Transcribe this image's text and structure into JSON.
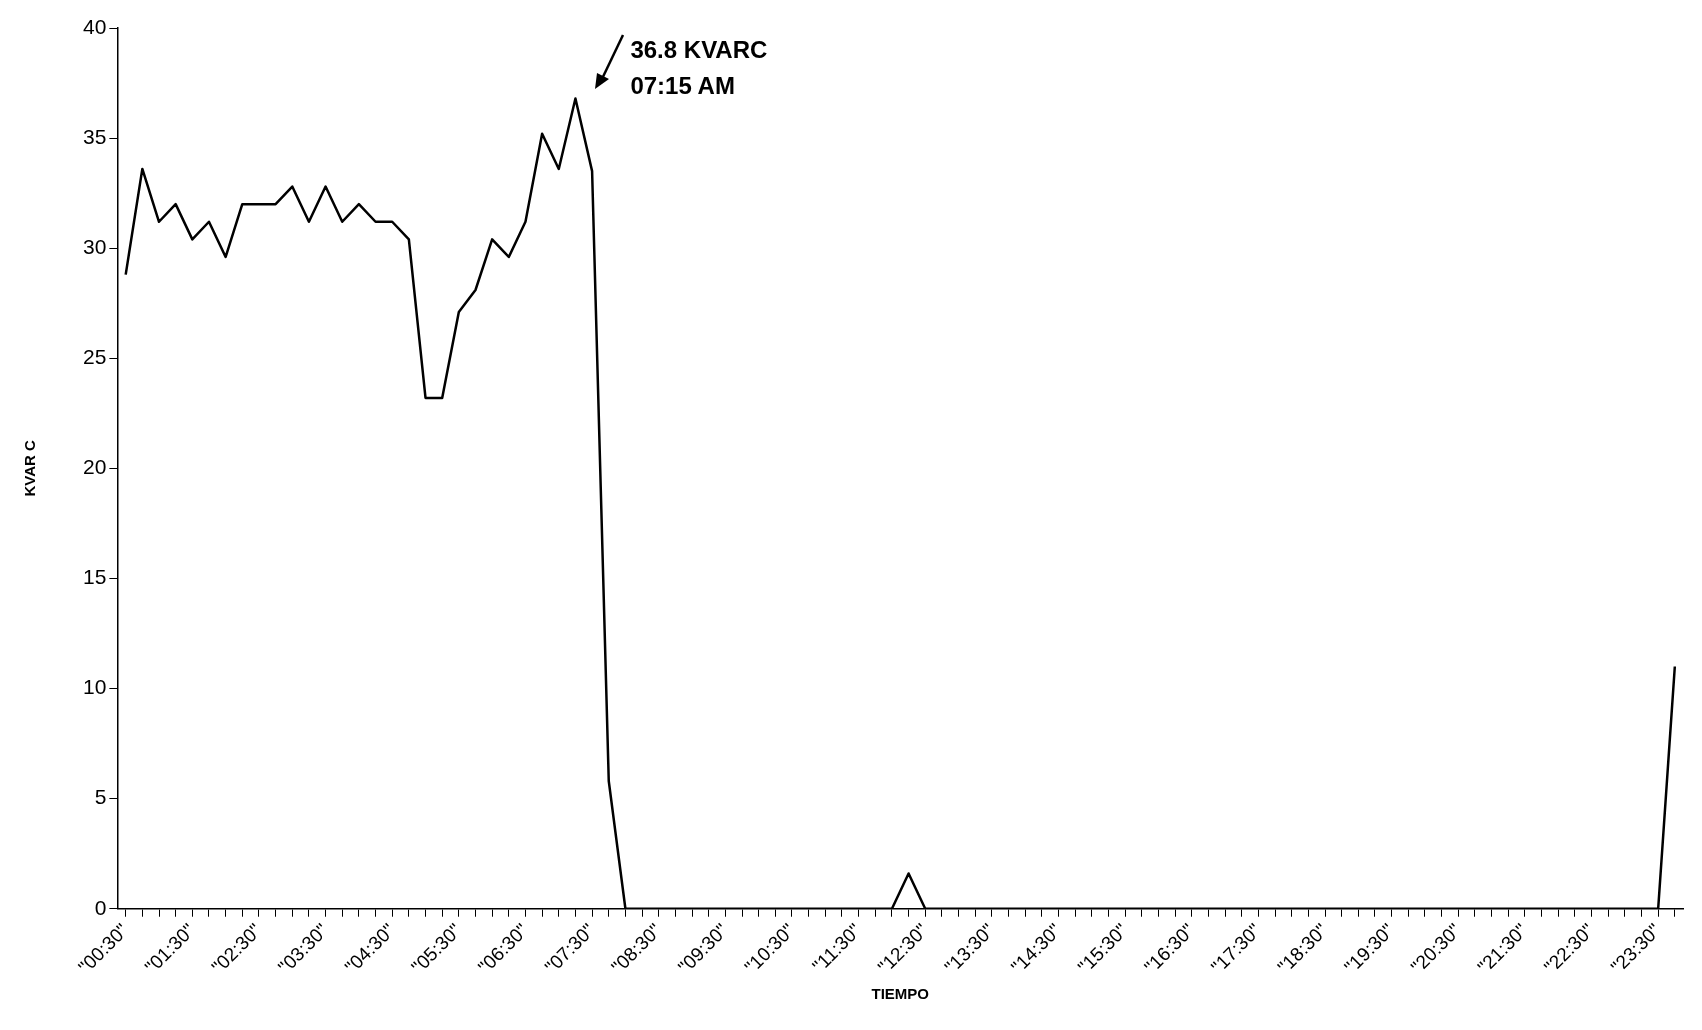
{
  "chart_data": {
    "type": "line",
    "xlabel": "TIEMPO",
    "ylabel": "KVAR C",
    "categories": [
      "\"00:30\"",
      null,
      null,
      null,
      "\"01:30\"",
      null,
      null,
      null,
      "\"02:30\"",
      null,
      null,
      null,
      "\"03:30\"",
      null,
      null,
      null,
      "\"04:30\"",
      null,
      null,
      null,
      "\"05:30\"",
      null,
      null,
      null,
      "\"06:30\"",
      null,
      null,
      null,
      "\"07:30\"",
      null,
      null,
      null,
      "\"08:30\"",
      null,
      null,
      null,
      "\"09:30\"",
      null,
      null,
      null,
      "\"10:30\"",
      null,
      null,
      null,
      "\"11:30\"",
      null,
      null,
      null,
      "\"12:30\"",
      null,
      null,
      null,
      "\"13:30\"",
      null,
      null,
      null,
      "\"14:30\"",
      null,
      null,
      null,
      "\"15:30\"",
      null,
      null,
      null,
      "\"16:30\"",
      null,
      null,
      null,
      "\"17:30\"",
      null,
      null,
      null,
      "\"18:30\"",
      null,
      null,
      null,
      "\"19:30\"",
      null,
      null,
      null,
      "\"20:30\"",
      null,
      null,
      null,
      "\"21:30\"",
      null,
      null,
      null,
      "\"22:30\"",
      null,
      null,
      null,
      "\"23:30\"",
      null
    ],
    "series": [
      {
        "color": "#000000",
        "values": [
          28.8,
          33.6,
          31.2,
          32.0,
          30.4,
          31.2,
          29.6,
          32.0,
          32.0,
          32.0,
          32.8,
          31.2,
          32.8,
          31.2,
          32.0,
          31.2,
          31.2,
          30.4,
          23.2,
          23.2,
          27.1,
          28.1,
          30.4,
          29.6,
          31.2,
          35.2,
          33.6,
          36.8,
          33.5,
          5.8,
          0,
          0,
          0,
          0,
          0,
          0,
          0,
          0,
          0,
          0,
          0,
          0,
          0,
          0,
          0,
          0,
          0,
          1.6,
          0,
          0,
          0,
          0,
          0,
          0,
          0,
          0,
          0,
          0,
          0,
          0,
          0,
          0,
          0,
          0,
          0,
          0,
          0,
          0,
          0,
          0,
          0,
          0,
          0,
          0,
          0,
          0,
          0,
          0,
          0,
          0,
          0,
          0,
          0,
          0,
          0,
          0,
          0,
          0,
          0,
          0,
          0,
          0,
          0,
          11
        ]
      }
    ],
    "ylim": [
      0,
      40
    ],
    "yticks": [
      0,
      5,
      10,
      15,
      20,
      25,
      30,
      35,
      40
    ],
    "grid": false,
    "legend": false,
    "marker": "none",
    "line_style": "solid",
    "annotations": [
      "36.8 KVARC\n07:15 AM"
    ]
  }
}
